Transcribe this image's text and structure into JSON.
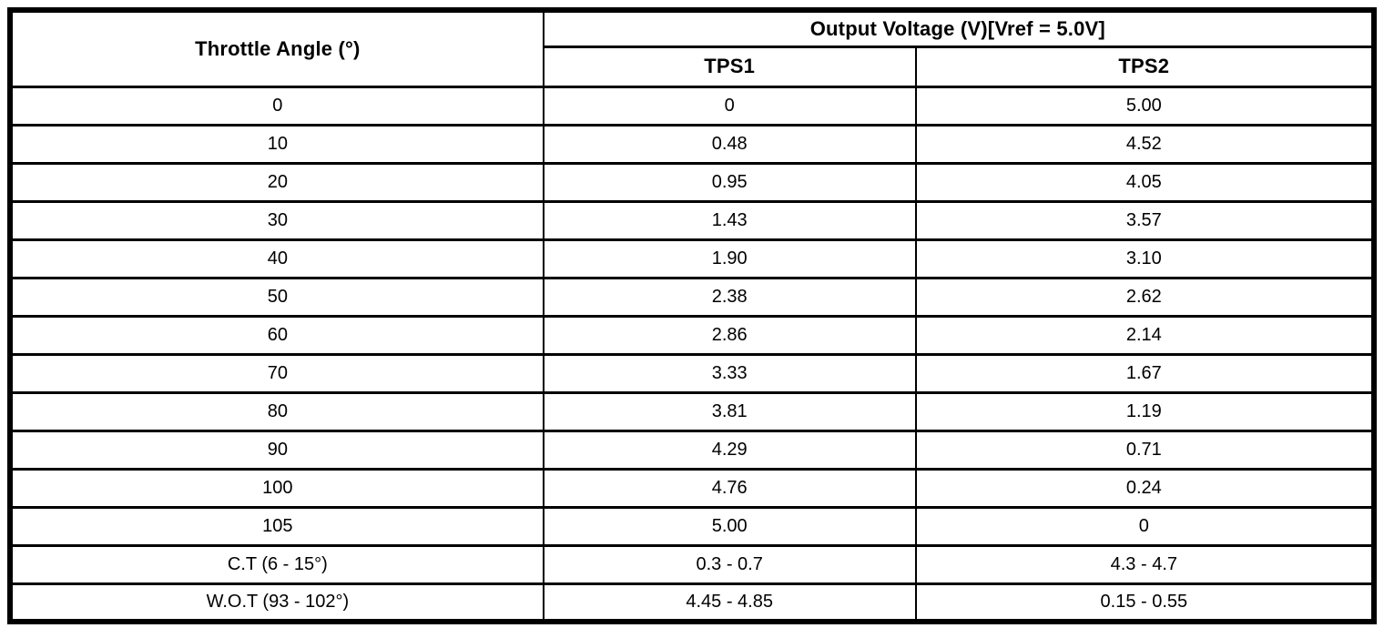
{
  "table": {
    "header": {
      "angle_label": "Throttle Angle (°)",
      "group_label": "Output Voltage (V)[Vref = 5.0V]",
      "sub1_label": "TPS1",
      "sub2_label": "TPS2"
    },
    "rows": [
      {
        "angle": "0",
        "tps1": "0",
        "tps2": "5.00"
      },
      {
        "angle": "10",
        "tps1": "0.48",
        "tps2": "4.52"
      },
      {
        "angle": "20",
        "tps1": "0.95",
        "tps2": "4.05"
      },
      {
        "angle": "30",
        "tps1": "1.43",
        "tps2": "3.57"
      },
      {
        "angle": "40",
        "tps1": "1.90",
        "tps2": "3.10"
      },
      {
        "angle": "50",
        "tps1": "2.38",
        "tps2": "2.62"
      },
      {
        "angle": "60",
        "tps1": "2.86",
        "tps2": "2.14"
      },
      {
        "angle": "70",
        "tps1": "3.33",
        "tps2": "1.67"
      },
      {
        "angle": "80",
        "tps1": "3.81",
        "tps2": "1.19"
      },
      {
        "angle": "90",
        "tps1": "4.29",
        "tps2": "0.71"
      },
      {
        "angle": "100",
        "tps1": "4.76",
        "tps2": "0.24"
      },
      {
        "angle": "105",
        "tps1": "5.00",
        "tps2": "0"
      },
      {
        "angle": "C.T (6 - 15°)",
        "tps1": "0.3 - 0.7",
        "tps2": "4.3 - 4.7"
      },
      {
        "angle": "W.O.T (93 - 102°)",
        "tps1": "4.45 - 4.85",
        "tps2": "0.15 - 0.55"
      }
    ]
  },
  "chart_data": {
    "type": "table",
    "title": "Output Voltage (V)[Vref = 5.0V]",
    "xlabel": "Throttle Angle (°)",
    "categories": [
      "0",
      "10",
      "20",
      "30",
      "40",
      "50",
      "60",
      "70",
      "80",
      "90",
      "100",
      "105",
      "C.T (6 - 15°)",
      "W.O.T (93 - 102°)"
    ],
    "series": [
      {
        "name": "TPS1",
        "values": [
          "0",
          "0.48",
          "0.95",
          "1.43",
          "1.90",
          "2.38",
          "2.86",
          "3.33",
          "3.81",
          "4.29",
          "4.76",
          "5.00",
          "0.3 - 0.7",
          "4.45 - 4.85"
        ]
      },
      {
        "name": "TPS2",
        "values": [
          "5.00",
          "4.52",
          "4.05",
          "3.57",
          "3.10",
          "2.62",
          "2.14",
          "1.67",
          "1.19",
          "0.71",
          "0.24",
          "0",
          "4.3 - 4.7",
          "0.15 - 0.55"
        ]
      }
    ]
  }
}
